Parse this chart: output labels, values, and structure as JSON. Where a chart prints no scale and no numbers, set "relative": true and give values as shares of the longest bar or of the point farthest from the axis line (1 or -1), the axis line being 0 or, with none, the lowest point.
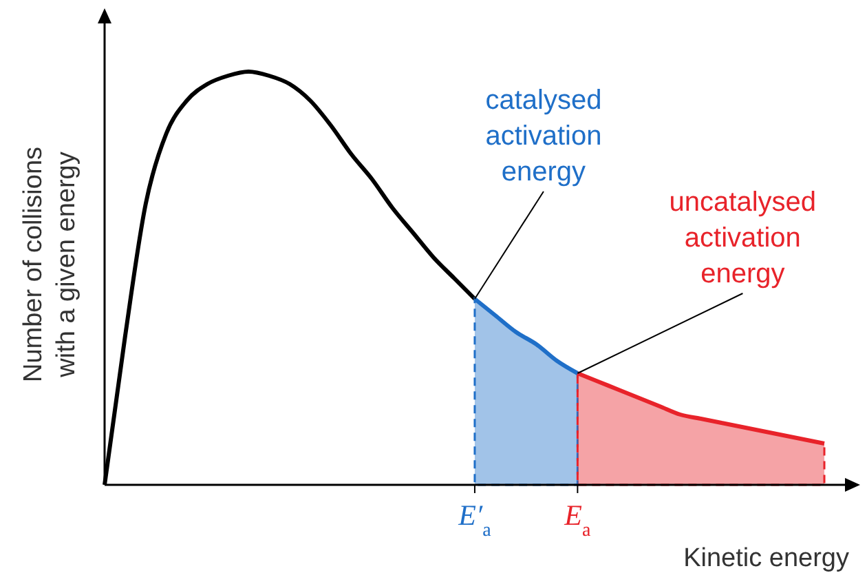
{
  "chart_data": {
    "type": "line",
    "relative": true,
    "xlabel": "Kinetic energy",
    "ylabel": "Number of collisions with a given energy",
    "categories": [
      null,
      null,
      null,
      null,
      null,
      null,
      null,
      null,
      null,
      null,
      null,
      null,
      null,
      null,
      null,
      null,
      null,
      null,
      "E′$_{a}$",
      null,
      null,
      null,
      null,
      "E$_{a}$",
      null,
      null,
      null,
      null,
      null,
      null,
      null,
      null,
      null,
      null,
      null,
      null
    ],
    "series": [
      {
        "color": "#000000",
        "values": [
          0,
          0.36,
          0.68,
          0.85,
          0.93,
          0.97,
          0.99,
          1.0,
          0.99,
          0.97,
          0.93,
          0.87,
          0.8,
          0.74,
          0.67,
          0.61,
          0.55,
          0.5,
          0.45,
          null,
          null,
          null,
          null,
          null,
          null,
          null,
          null,
          null,
          null,
          null,
          null,
          null,
          null,
          null,
          null,
          null
        ]
      },
      {
        "type": "area",
        "color": "#1f6fc8",
        "values": [
          null,
          null,
          null,
          null,
          null,
          null,
          null,
          null,
          null,
          null,
          null,
          null,
          null,
          null,
          null,
          null,
          null,
          null,
          0.45,
          0.41,
          0.37,
          0.34,
          0.3,
          0.27,
          null,
          null,
          null,
          null,
          null,
          null,
          null,
          null,
          null,
          null,
          null,
          null
        ]
      },
      {
        "type": "area",
        "color": "#e8232a",
        "values": [
          null,
          null,
          null,
          null,
          null,
          null,
          null,
          null,
          null,
          null,
          null,
          null,
          null,
          null,
          null,
          null,
          null,
          null,
          null,
          null,
          null,
          null,
          null,
          0.27,
          0.25,
          0.23,
          0.21,
          0.19,
          0.17,
          0.16,
          0.15,
          0.14,
          0.13,
          0.12,
          0.11,
          0.1
        ]
      }
    ],
    "annotations": [
      {
        "text": "catalysed activation energy",
        "x": "E′$_{a}$",
        "y": 0.45
      },
      {
        "text": "uncatalysed activation energy",
        "x": "E$_{a}$",
        "y": 0.27
      }
    ]
  }
}
